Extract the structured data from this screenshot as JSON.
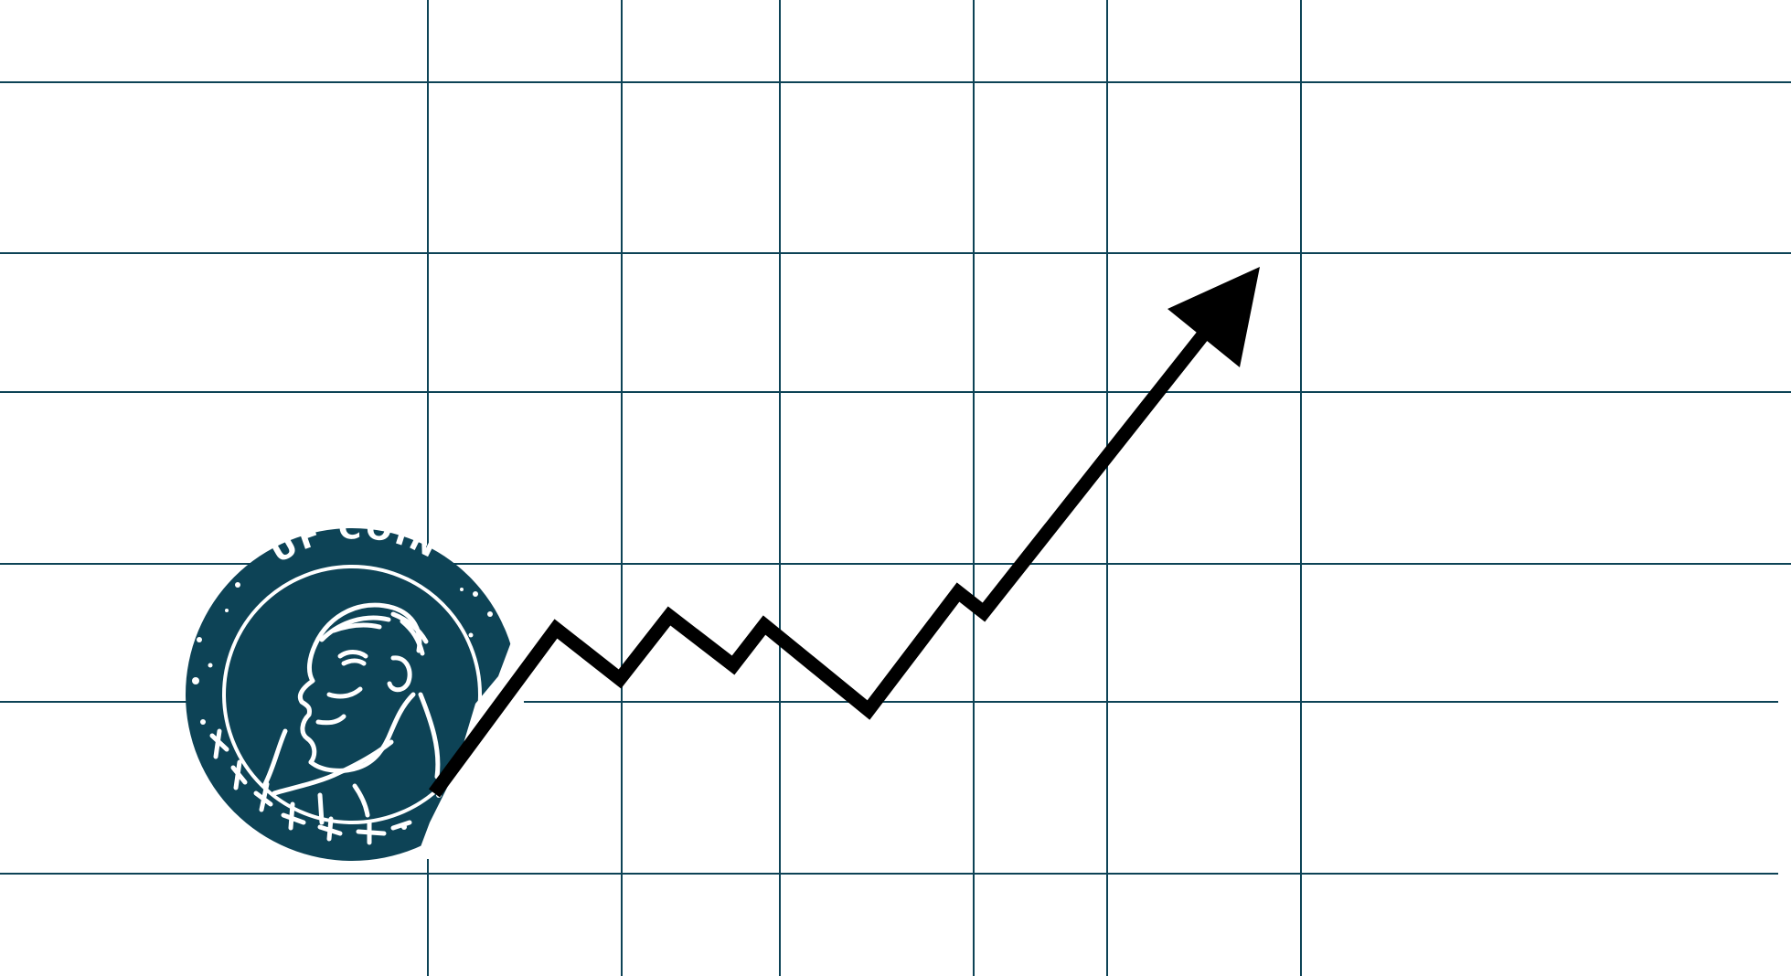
{
  "colors": {
    "background": "#ffffff",
    "grid": "#0d4356",
    "coin": "#0d4356",
    "coin_detail": "#ffffff",
    "arrow": "#000000"
  },
  "coin": {
    "text": "UF COIN",
    "icon": "portrait-coin-logo"
  },
  "arrow": {
    "direction": "up-right",
    "icon": "trend-arrow-icon"
  }
}
